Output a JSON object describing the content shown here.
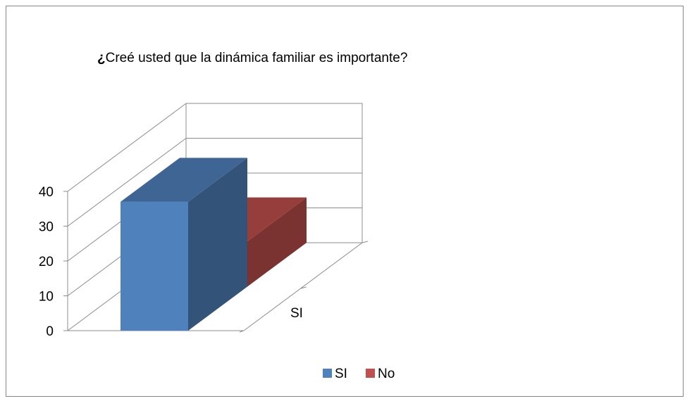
{
  "chart_data": {
    "type": "bar",
    "title": "¿Creé usted que la dinámica familiar es importante?",
    "title_lead": "¿",
    "title_rest": "Creé usted que la dinámica familiar es importante?",
    "xlabel": "",
    "ylabel": "",
    "categories": [
      "SI"
    ],
    "series": [
      {
        "name": "SI",
        "values": [
          37
        ],
        "color": "#4F81BD"
      },
      {
        "name": "No",
        "values": [
          13
        ],
        "color": "#C0504D"
      }
    ],
    "ylim": [
      0,
      40
    ],
    "yticks": [
      0,
      10,
      20,
      30,
      40
    ],
    "grid": true,
    "legend_position": "bottom",
    "style": "3d-clustered-column"
  }
}
